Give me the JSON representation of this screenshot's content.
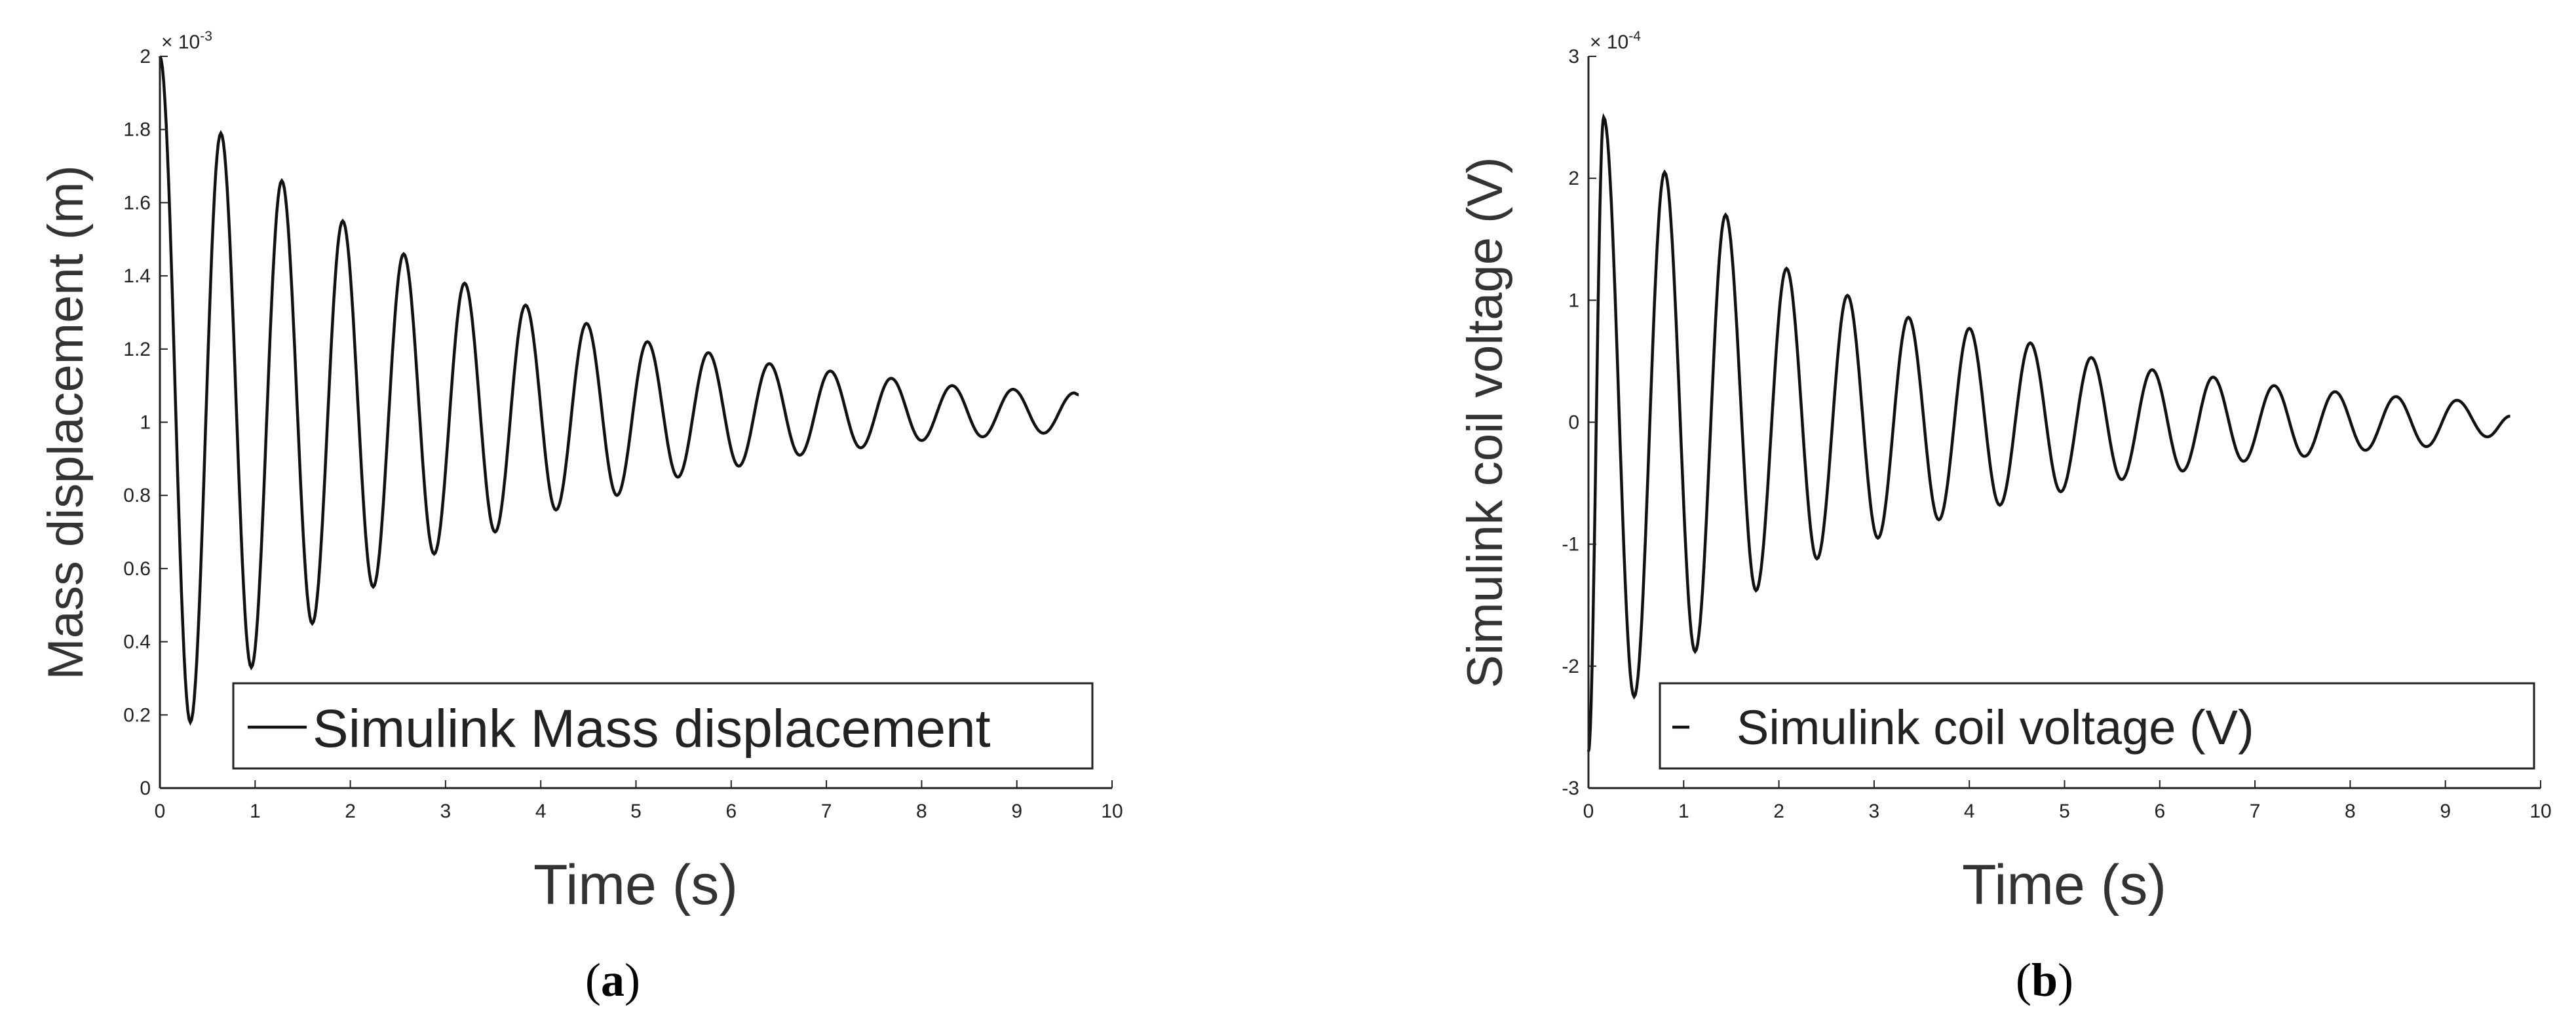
{
  "chart_data": [
    {
      "type": "line",
      "panel_caption": {
        "open": "(",
        "letter": "a",
        "close": ")"
      },
      "xlabel": "Time (s)",
      "ylabel": "Mass displacement (m)",
      "y_multiplier": {
        "base": "× 10",
        "exponent": "-3"
      },
      "xlim": [
        0,
        10
      ],
      "ylim": [
        0,
        2
      ],
      "x_ticks": [
        "0",
        "1",
        "2",
        "3",
        "4",
        "5",
        "6",
        "7",
        "8",
        "9",
        "10"
      ],
      "y_ticks": [
        "0",
        "0.2",
        "0.4",
        "0.6",
        "0.8",
        "1",
        "1.2",
        "1.4",
        "1.6",
        "1.8",
        "2"
      ],
      "legend": {
        "position": "bottom-right",
        "entries": [
          "Simulink Mass displacement"
        ]
      },
      "series": [
        {
          "name": "Simulink Mass displacement",
          "color": "#111111",
          "points": [
            [
              0,
              2.0
            ],
            [
              0.32,
              0.18
            ],
            [
              0.64,
              1.79
            ],
            [
              0.96,
              0.33
            ],
            [
              1.28,
              1.66
            ],
            [
              1.6,
              0.45
            ],
            [
              1.92,
              1.55
            ],
            [
              2.24,
              0.55
            ],
            [
              2.56,
              1.46
            ],
            [
              2.88,
              0.64
            ],
            [
              3.2,
              1.38
            ],
            [
              3.52,
              0.7
            ],
            [
              3.84,
              1.32
            ],
            [
              4.16,
              0.76
            ],
            [
              4.48,
              1.27
            ],
            [
              4.8,
              0.8
            ],
            [
              5.12,
              1.22
            ],
            [
              5.44,
              0.85
            ],
            [
              5.76,
              1.19
            ],
            [
              6.08,
              0.88
            ],
            [
              6.4,
              1.16
            ],
            [
              6.72,
              0.91
            ],
            [
              7.04,
              1.14
            ],
            [
              7.36,
              0.93
            ],
            [
              7.68,
              1.12
            ],
            [
              8.0,
              0.95
            ],
            [
              8.32,
              1.1
            ],
            [
              8.64,
              0.96
            ],
            [
              8.96,
              1.09
            ],
            [
              9.28,
              0.97
            ],
            [
              9.6,
              1.08
            ],
            [
              9.65,
              1.075
            ]
          ]
        }
      ]
    },
    {
      "type": "line",
      "panel_caption": {
        "open": "(",
        "letter": "b",
        "close": ")"
      },
      "xlabel": "Time (s)",
      "ylabel": "Simulink coil voltage (V)",
      "y_multiplier": {
        "base": "× 10",
        "exponent": "-4"
      },
      "xlim": [
        0,
        10
      ],
      "ylim": [
        -3,
        3
      ],
      "x_ticks": [
        "0",
        "1",
        "2",
        "3",
        "4",
        "5",
        "6",
        "7",
        "8",
        "9",
        "10"
      ],
      "y_ticks": [
        "-3",
        "-2",
        "-1",
        "0",
        "1",
        "2",
        "3"
      ],
      "legend": {
        "position": "bottom-right",
        "entries": [
          "Simulink coil voltage (V)"
        ]
      },
      "series": [
        {
          "name": "Simulink coil voltage (V)",
          "color": "#111111",
          "points": [
            [
              0,
              -2.7
            ],
            [
              0.16,
              2.5
            ],
            [
              0.48,
              -2.25
            ],
            [
              0.8,
              2.05
            ],
            [
              1.12,
              -1.88
            ],
            [
              1.44,
              1.7
            ],
            [
              1.76,
              -1.38
            ],
            [
              2.08,
              1.26
            ],
            [
              2.4,
              -1.12
            ],
            [
              2.72,
              1.04
            ],
            [
              3.04,
              -0.95
            ],
            [
              3.36,
              0.86
            ],
            [
              3.68,
              -0.8
            ],
            [
              4.0,
              0.77
            ],
            [
              4.32,
              -0.68
            ],
            [
              4.64,
              0.65
            ],
            [
              4.96,
              -0.57
            ],
            [
              5.28,
              0.53
            ],
            [
              5.6,
              -0.47
            ],
            [
              5.92,
              0.43
            ],
            [
              6.24,
              -0.4
            ],
            [
              6.56,
              0.37
            ],
            [
              6.88,
              -0.32
            ],
            [
              7.2,
              0.3
            ],
            [
              7.52,
              -0.28
            ],
            [
              7.84,
              0.25
            ],
            [
              8.16,
              -0.23
            ],
            [
              8.48,
              0.21
            ],
            [
              8.8,
              -0.2
            ],
            [
              9.12,
              0.18
            ],
            [
              9.44,
              -0.12
            ],
            [
              9.68,
              0.05
            ]
          ]
        }
      ]
    }
  ]
}
